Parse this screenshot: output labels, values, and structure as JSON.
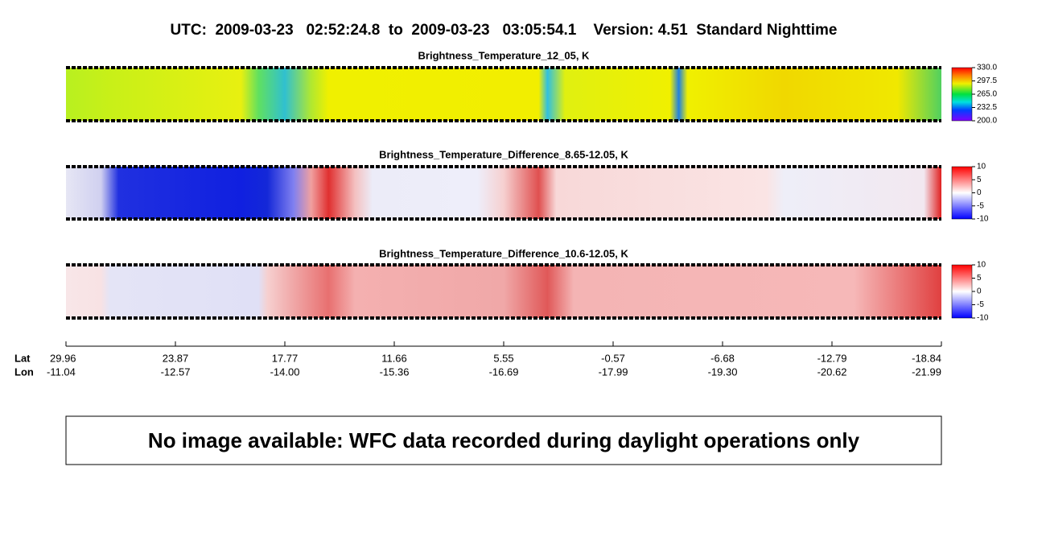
{
  "header": {
    "title": "UTC:  2009-03-23   02:52:24.8  to  2009-03-23   03:05:54.1    Version: 4.51  Standard Nighttime"
  },
  "panels": [
    {
      "title": "Brightness_Temperature_12_05, K",
      "colorbar": {
        "lim": [
          200,
          330
        ],
        "ticks": [
          {
            "value": 330,
            "label": "330.0"
          },
          {
            "value": 297.5,
            "label": "297.5"
          },
          {
            "value": 265,
            "label": "265.0"
          },
          {
            "value": 232.5,
            "label": "232.5"
          },
          {
            "value": 200,
            "label": "200.0"
          }
        ]
      }
    },
    {
      "title": "Brightness_Temperature_Difference_8.65-12.05, K",
      "colorbar": {
        "lim": [
          -10,
          10
        ],
        "ticks": [
          10,
          5,
          0,
          -5,
          -10
        ]
      }
    },
    {
      "title": "Brightness_Temperature_Difference_10.6-12.05, K",
      "colorbar": {
        "lim": [
          -10,
          10
        ],
        "ticks": [
          10,
          5,
          0,
          -5,
          -10
        ]
      }
    }
  ],
  "axis": {
    "lat_label": "Lat",
    "lon_label": "Lon",
    "lat": [
      29.96,
      23.87,
      17.77,
      11.66,
      5.55,
      -0.57,
      -6.68,
      -12.79,
      -18.84
    ],
    "lon": [
      -11.04,
      -12.57,
      {
        "value": -14,
        "label": "-14.00"
      },
      -15.36,
      -16.69,
      -17.99,
      {
        "value": -19.3,
        "label": "-19.30"
      },
      -20.62,
      -21.99
    ]
  },
  "notice": "No image available: WFC data recorded during daylight operations only"
}
